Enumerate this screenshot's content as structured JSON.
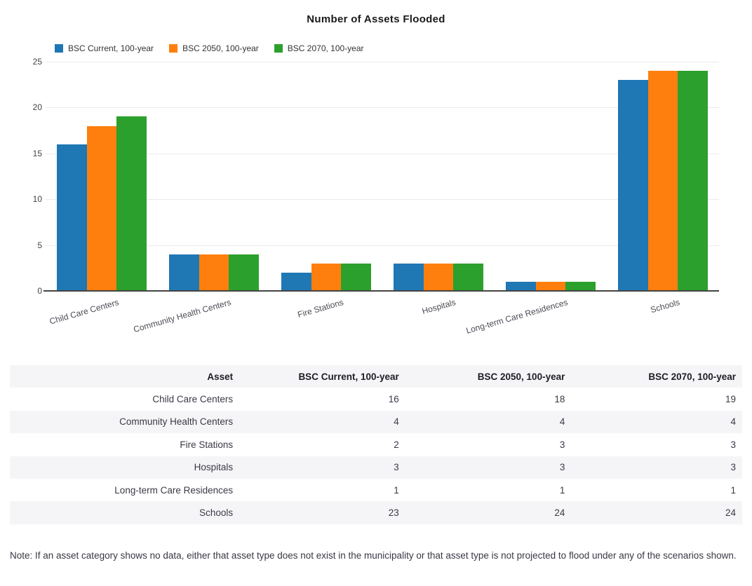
{
  "chart_data": {
    "type": "bar",
    "title": "Number of Assets Flooded",
    "categories": [
      "Child Care Centers",
      "Community Health Centers",
      "Fire Stations",
      "Hospitals",
      "Long-term Care Residences",
      "Schools"
    ],
    "series": [
      {
        "name": "BSC Current, 100-year",
        "color": "#1f77b4",
        "values": [
          16,
          4,
          2,
          3,
          1,
          23
        ]
      },
      {
        "name": "BSC 2050, 100-year",
        "color": "#ff7f0e",
        "values": [
          18,
          4,
          3,
          3,
          1,
          24
        ]
      },
      {
        "name": "BSC 2070, 100-year",
        "color": "#2ca02c",
        "values": [
          19,
          4,
          3,
          3,
          1,
          24
        ]
      }
    ],
    "xlabel": "",
    "ylabel": "",
    "ylim": [
      0,
      25
    ],
    "yticks": [
      0,
      5,
      10,
      15,
      20,
      25
    ],
    "grid": "horizontal",
    "legend_position": "top-left"
  },
  "table": {
    "columns": [
      "Asset",
      "BSC Current, 100-year",
      "BSC 2050, 100-year",
      "BSC 2070, 100-year"
    ],
    "rows": [
      [
        "Child Care Centers",
        "16",
        "18",
        "19"
      ],
      [
        "Community Health Centers",
        "4",
        "4",
        "4"
      ],
      [
        "Fire Stations",
        "2",
        "3",
        "3"
      ],
      [
        "Hospitals",
        "3",
        "3",
        "3"
      ],
      [
        "Long-term Care Residences",
        "1",
        "1",
        "1"
      ],
      [
        "Schools",
        "23",
        "24",
        "24"
      ]
    ]
  },
  "note": {
    "text": "Note: If an asset category shows no data, either that asset type does not exist in the municipality or that asset type is not projected to flood under any of the scenarios shown."
  },
  "colors": {
    "grid": "#ebebeb",
    "axis": "#444444",
    "row_stripe": "#f5f5f7"
  }
}
